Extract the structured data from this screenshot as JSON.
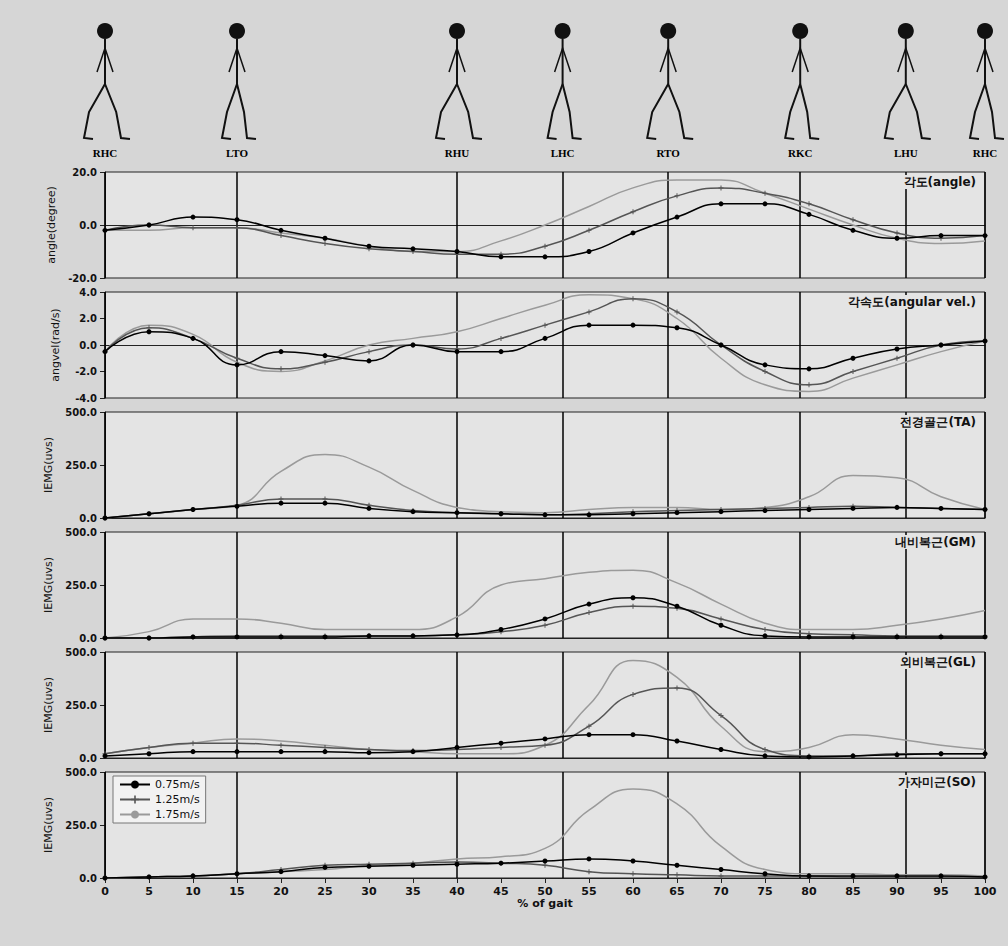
{
  "events": [
    {
      "label": "RHC",
      "x": 0
    },
    {
      "label": "LTO",
      "x": 15
    },
    {
      "label": "RHU",
      "x": 40
    },
    {
      "label": "LHC",
      "x": 52
    },
    {
      "label": "RTO",
      "x": 64
    },
    {
      "label": "RKC",
      "x": 79
    },
    {
      "label": "LHU",
      "x": 91
    },
    {
      "label": "RHC",
      "x": 100
    }
  ],
  "chart_data": [
    {
      "type": "line",
      "title": "각도(angle)",
      "ylabel": "angle(degree)",
      "grid": false,
      "tick_labels": "y",
      "x": [
        0,
        5,
        10,
        15,
        20,
        25,
        30,
        35,
        40,
        45,
        50,
        55,
        60,
        65,
        70,
        75,
        80,
        85,
        90,
        95,
        100
      ],
      "xlim": [
        0,
        100
      ],
      "xticks": [
        0,
        5,
        10,
        15,
        20,
        25,
        30,
        35,
        40,
        45,
        50,
        55,
        60,
        65,
        70,
        75,
        80,
        85,
        90,
        95,
        100
      ],
      "ylim": [
        -20,
        20
      ],
      "yticks": [
        {
          "value": -20,
          "label": "-20.0"
        },
        {
          "value": 0,
          "label": "0.0"
        },
        {
          "value": 20,
          "label": "20.0"
        }
      ],
      "series": [
        {
          "name": "0.75m/s",
          "color": "#000000",
          "marker": "circle",
          "values": [
            -2,
            0,
            3,
            2,
            -2,
            -5,
            -8,
            -9,
            -10,
            -12,
            -12,
            -10,
            -3,
            3,
            8,
            8,
            4,
            -2,
            -5,
            -4,
            -4
          ]
        },
        {
          "name": "1.25m/s",
          "color": "#555555",
          "marker": "plus",
          "values": [
            -2,
            0,
            -1,
            -1,
            -4,
            -7,
            -9,
            -10,
            -11,
            -11,
            -8,
            -2,
            5,
            11,
            14,
            12,
            8,
            2,
            -3,
            -5,
            -4
          ]
        },
        {
          "name": "1.75m/s",
          "color": "#9a9a9a",
          "marker": "none",
          "values": [
            -2,
            -2,
            -1,
            -1,
            -3,
            -5,
            -8,
            -10,
            -10,
            -6,
            0,
            7,
            14,
            17,
            17,
            12,
            6,
            0,
            -5,
            -7,
            -6
          ]
        }
      ]
    },
    {
      "type": "line",
      "title": "각속도(angular vel.)",
      "ylabel": "angvel(rad/s)",
      "grid": false,
      "tick_labels": "y",
      "x": [
        0,
        5,
        10,
        15,
        20,
        25,
        30,
        35,
        40,
        45,
        50,
        55,
        60,
        65,
        70,
        75,
        80,
        85,
        90,
        95,
        100
      ],
      "xlim": [
        0,
        100
      ],
      "xticks": [
        0,
        5,
        10,
        15,
        20,
        25,
        30,
        35,
        40,
        45,
        50,
        55,
        60,
        65,
        70,
        75,
        80,
        85,
        90,
        95,
        100
      ],
      "ylim": [
        -4,
        4
      ],
      "yticks": [
        {
          "value": -4,
          "label": "-4.0"
        },
        {
          "value": -2,
          "label": "-2.0"
        },
        {
          "value": 0,
          "label": "0.0"
        },
        {
          "value": 2,
          "label": "2.0"
        },
        {
          "value": 4,
          "label": "4.0"
        }
      ],
      "series": [
        {
          "name": "0.75m/s",
          "color": "#000000",
          "marker": "circle",
          "values": [
            -0.5,
            1,
            0.5,
            -1.5,
            -0.5,
            -0.8,
            -1.2,
            0,
            -0.5,
            -0.5,
            0.5,
            1.5,
            1.5,
            1.3,
            0,
            -1.5,
            -1.8,
            -1,
            -0.3,
            0,
            0.3
          ]
        },
        {
          "name": "1.25m/s",
          "color": "#555555",
          "marker": "plus",
          "values": [
            -0.5,
            1.3,
            0.5,
            -1,
            -1.8,
            -1.3,
            -0.5,
            0,
            -0.3,
            0.5,
            1.5,
            2.5,
            3.5,
            2.5,
            0,
            -2,
            -3,
            -2,
            -1,
            0,
            0.3
          ]
        },
        {
          "name": "1.75m/s",
          "color": "#9a9a9a",
          "marker": "none",
          "values": [
            -0.5,
            1.5,
            0.8,
            -1.3,
            -2,
            -1.2,
            0,
            0.5,
            1,
            2,
            3,
            3.8,
            3.5,
            2,
            -1,
            -3,
            -3.5,
            -2.5,
            -1.5,
            -0.5,
            0.3
          ]
        }
      ]
    },
    {
      "type": "line",
      "title": "전경골근(TA)",
      "ylabel": "IEMG(uvs)",
      "grid": false,
      "tick_labels": "y",
      "x": [
        0,
        5,
        10,
        15,
        20,
        25,
        30,
        35,
        40,
        45,
        50,
        55,
        60,
        65,
        70,
        75,
        80,
        85,
        90,
        95,
        100
      ],
      "xlim": [
        0,
        100
      ],
      "xticks": [
        0,
        5,
        10,
        15,
        20,
        25,
        30,
        35,
        40,
        45,
        50,
        55,
        60,
        65,
        70,
        75,
        80,
        85,
        90,
        95,
        100
      ],
      "ylim": [
        0,
        500
      ],
      "yticks": [
        {
          "value": 0,
          "label": "0.0"
        },
        {
          "value": 250,
          "label": "250.0"
        },
        {
          "value": 500,
          "label": "500.0"
        }
      ],
      "series": [
        {
          "name": "0.75m/s",
          "color": "#000000",
          "marker": "circle",
          "values": [
            0,
            20,
            40,
            55,
            70,
            70,
            45,
            30,
            25,
            20,
            15,
            15,
            20,
            25,
            30,
            35,
            40,
            45,
            50,
            45,
            40
          ]
        },
        {
          "name": "1.25m/s",
          "color": "#555555",
          "marker": "plus",
          "values": [
            0,
            20,
            40,
            60,
            90,
            90,
            60,
            35,
            25,
            20,
            15,
            20,
            30,
            35,
            40,
            45,
            50,
            55,
            50,
            45,
            40
          ]
        },
        {
          "name": "1.75m/s",
          "color": "#9a9a9a",
          "marker": "none",
          "values": [
            0,
            20,
            40,
            60,
            220,
            300,
            240,
            130,
            50,
            30,
            25,
            40,
            50,
            50,
            40,
            50,
            100,
            200,
            190,
            100,
            40
          ]
        }
      ]
    },
    {
      "type": "line",
      "title": "내비복근(GM)",
      "ylabel": "IEMG(uvs)",
      "grid": false,
      "tick_labels": "y",
      "x": [
        0,
        5,
        10,
        15,
        20,
        25,
        30,
        35,
        40,
        45,
        50,
        55,
        60,
        65,
        70,
        75,
        80,
        85,
        90,
        95,
        100
      ],
      "xlim": [
        0,
        100
      ],
      "xticks": [
        0,
        5,
        10,
        15,
        20,
        25,
        30,
        35,
        40,
        45,
        50,
        55,
        60,
        65,
        70,
        75,
        80,
        85,
        90,
        95,
        100
      ],
      "ylim": [
        0,
        500
      ],
      "yticks": [
        {
          "value": 0,
          "label": "0.0"
        },
        {
          "value": 250,
          "label": "250.0"
        },
        {
          "value": 500,
          "label": "500.0"
        }
      ],
      "series": [
        {
          "name": "0.75m/s",
          "color": "#000000",
          "marker": "circle",
          "values": [
            0,
            0,
            5,
            5,
            5,
            5,
            10,
            10,
            15,
            40,
            90,
            160,
            190,
            150,
            60,
            10,
            5,
            5,
            5,
            5,
            5
          ]
        },
        {
          "name": "1.25m/s",
          "color": "#555555",
          "marker": "plus",
          "values": [
            0,
            0,
            5,
            10,
            10,
            10,
            10,
            10,
            15,
            30,
            60,
            120,
            150,
            140,
            90,
            40,
            20,
            15,
            10,
            10,
            10
          ]
        },
        {
          "name": "1.75m/s",
          "color": "#9a9a9a",
          "marker": "none",
          "values": [
            0,
            30,
            90,
            90,
            70,
            40,
            40,
            40,
            100,
            250,
            280,
            310,
            320,
            260,
            160,
            70,
            40,
            40,
            60,
            90,
            130
          ]
        }
      ]
    },
    {
      "type": "line",
      "title": "외비복근(GL)",
      "ylabel": "IEMG(uvs)",
      "grid": false,
      "tick_labels": "y",
      "x": [
        0,
        5,
        10,
        15,
        20,
        25,
        30,
        35,
        40,
        45,
        50,
        55,
        60,
        65,
        70,
        75,
        80,
        85,
        90,
        95,
        100
      ],
      "xlim": [
        0,
        100
      ],
      "xticks": [
        0,
        5,
        10,
        15,
        20,
        25,
        30,
        35,
        40,
        45,
        50,
        55,
        60,
        65,
        70,
        75,
        80,
        85,
        90,
        95,
        100
      ],
      "ylim": [
        0,
        500
      ],
      "yticks": [
        {
          "value": 0,
          "label": "0.0"
        },
        {
          "value": 250,
          "label": "250.0"
        },
        {
          "value": 500,
          "label": "500.0"
        }
      ],
      "series": [
        {
          "name": "0.75m/s",
          "color": "#000000",
          "marker": "circle",
          "values": [
            10,
            20,
            30,
            30,
            30,
            30,
            25,
            30,
            50,
            70,
            90,
            110,
            110,
            80,
            40,
            10,
            5,
            10,
            15,
            20,
            20
          ]
        },
        {
          "name": "1.25m/s",
          "color": "#555555",
          "marker": "plus",
          "values": [
            20,
            50,
            70,
            70,
            60,
            50,
            40,
            35,
            40,
            50,
            60,
            150,
            300,
            330,
            200,
            40,
            10,
            10,
            20,
            20,
            20
          ]
        },
        {
          "name": "1.75m/s",
          "color": "#9a9a9a",
          "marker": "none",
          "values": [
            20,
            50,
            70,
            90,
            80,
            60,
            40,
            30,
            20,
            20,
            60,
            250,
            460,
            380,
            150,
            30,
            50,
            110,
            90,
            60,
            40
          ]
        }
      ]
    },
    {
      "type": "line",
      "title": "가자미근(SO)",
      "ylabel": "IEMG(uvs)",
      "xlabel": "% of gait",
      "grid": false,
      "legend": "upper left",
      "x": [
        0,
        5,
        10,
        15,
        20,
        25,
        30,
        35,
        40,
        45,
        50,
        55,
        60,
        65,
        70,
        75,
        80,
        85,
        90,
        95,
        100
      ],
      "xlim": [
        0,
        100
      ],
      "xticks": [
        0,
        5,
        10,
        15,
        20,
        25,
        30,
        35,
        40,
        45,
        50,
        55,
        60,
        65,
        70,
        75,
        80,
        85,
        90,
        95,
        100
      ],
      "ylim": [
        0,
        500
      ],
      "yticks": [
        {
          "value": 0,
          "label": "0.0"
        },
        {
          "value": 250,
          "label": "250.0"
        },
        {
          "value": 500,
          "label": "500.0"
        }
      ],
      "series": [
        {
          "name": "0.75m/s",
          "color": "#000000",
          "marker": "circle",
          "values": [
            0,
            5,
            10,
            20,
            30,
            50,
            55,
            60,
            65,
            70,
            80,
            90,
            80,
            60,
            40,
            20,
            10,
            10,
            10,
            10,
            5
          ]
        },
        {
          "name": "1.25m/s",
          "color": "#555555",
          "marker": "plus",
          "values": [
            0,
            5,
            10,
            20,
            40,
            60,
            65,
            70,
            75,
            70,
            60,
            30,
            20,
            15,
            10,
            10,
            10,
            5,
            5,
            5,
            5
          ]
        },
        {
          "name": "1.75m/s",
          "color": "#9a9a9a",
          "marker": "none",
          "values": [
            0,
            5,
            10,
            20,
            30,
            40,
            60,
            70,
            90,
            100,
            140,
            320,
            420,
            350,
            150,
            40,
            20,
            20,
            15,
            15,
            10
          ]
        }
      ]
    }
  ]
}
